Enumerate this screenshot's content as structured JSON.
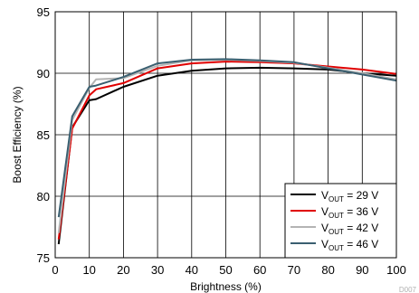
{
  "chart_data": {
    "type": "line",
    "title": "",
    "xlabel": "Brightness (%)",
    "ylabel": "Boost Efficiency (%)",
    "xlim": [
      0,
      100
    ],
    "ylim": [
      75,
      95
    ],
    "xticks": [
      "0",
      "10",
      "20",
      "30",
      "40",
      "50",
      "60",
      "70",
      "80",
      "90",
      "100"
    ],
    "yticks": [
      "75",
      "80",
      "85",
      "90",
      "95"
    ],
    "grid": true,
    "legend_position": "bottom-right",
    "watermark": "D007",
    "series": [
      {
        "name": "VOUT = 29 V",
        "label_main": "V",
        "label_sub": "OUT",
        "label_rest": " = 29 V",
        "color": "#000000",
        "x": [
          1,
          5,
          10,
          12,
          20,
          30,
          40,
          50,
          60,
          70,
          80,
          90,
          100
        ],
        "y": [
          76.1,
          85.6,
          87.8,
          87.9,
          88.9,
          89.8,
          90.2,
          90.4,
          90.45,
          90.4,
          90.3,
          90.0,
          89.8
        ]
      },
      {
        "name": "VOUT = 36 V",
        "label_main": "V",
        "label_sub": "OUT",
        "label_rest": " = 36 V",
        "color": "#e00000",
        "x": [
          1,
          5,
          10,
          12,
          20,
          30,
          40,
          50,
          60,
          70,
          80,
          90,
          100
        ],
        "y": [
          76.5,
          85.5,
          88.2,
          88.7,
          89.2,
          90.4,
          90.8,
          90.95,
          90.9,
          90.8,
          90.55,
          90.3,
          89.95
        ]
      },
      {
        "name": "VOUT = 42 V",
        "label_main": "V",
        "label_sub": "OUT",
        "label_rest": " = 42 V",
        "color": "#b4b4b4",
        "x": [
          1,
          5,
          10,
          12,
          20,
          30,
          40,
          50,
          60,
          70,
          80,
          90,
          100
        ],
        "y": [
          77.0,
          86.2,
          88.8,
          89.5,
          89.6,
          90.6,
          91.05,
          91.1,
          91.0,
          90.85,
          90.45,
          90.0,
          89.5
        ]
      },
      {
        "name": "VOUT = 46 V",
        "label_main": "V",
        "label_sub": "OUT",
        "label_rest": " = 46 V",
        "color": "#3a5f70",
        "x": [
          1,
          5,
          10,
          12,
          20,
          30,
          40,
          50,
          60,
          70,
          80,
          90,
          100
        ],
        "y": [
          78.3,
          86.5,
          88.9,
          89.0,
          89.7,
          90.8,
          91.1,
          91.15,
          91.05,
          90.9,
          90.4,
          89.9,
          89.4
        ]
      }
    ]
  }
}
